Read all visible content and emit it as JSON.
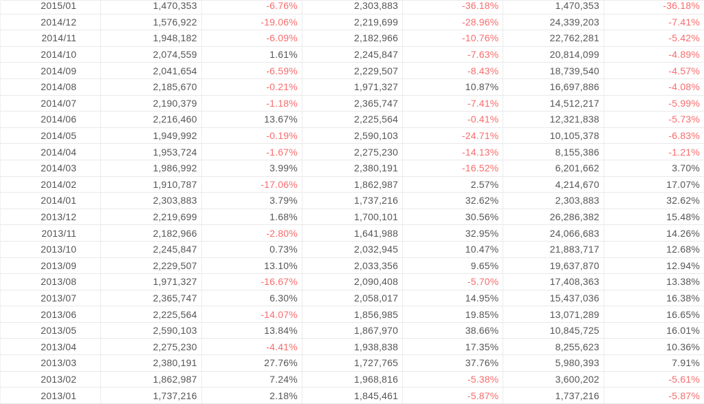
{
  "table": {
    "row_count": 25,
    "column_roles": [
      "month",
      "value",
      "percent",
      "value",
      "percent",
      "value",
      "percent"
    ],
    "rows": [
      [
        "2015/01",
        "1,470,353",
        "-6.76%",
        "2,303,883",
        "-36.18%",
        "1,470,353",
        "-36.18%"
      ],
      [
        "2014/12",
        "1,576,922",
        "-19.06%",
        "2,219,699",
        "-28.96%",
        "24,339,203",
        "-7.41%"
      ],
      [
        "2014/11",
        "1,948,182",
        "-6.09%",
        "2,182,966",
        "-10.76%",
        "22,762,281",
        "-5.42%"
      ],
      [
        "2014/10",
        "2,074,559",
        "1.61%",
        "2,245,847",
        "-7.63%",
        "20,814,099",
        "-4.89%"
      ],
      [
        "2014/09",
        "2,041,654",
        "-6.59%",
        "2,229,507",
        "-8.43%",
        "18,739,540",
        "-4.57%"
      ],
      [
        "2014/08",
        "2,185,670",
        "-0.21%",
        "1,971,327",
        "10.87%",
        "16,697,886",
        "-4.08%"
      ],
      [
        "2014/07",
        "2,190,379",
        "-1.18%",
        "2,365,747",
        "-7.41%",
        "14,512,217",
        "-5.99%"
      ],
      [
        "2014/06",
        "2,216,460",
        "13.67%",
        "2,225,564",
        "-0.41%",
        "12,321,838",
        "-5.73%"
      ],
      [
        "2014/05",
        "1,949,992",
        "-0.19%",
        "2,590,103",
        "-24.71%",
        "10,105,378",
        "-6.83%"
      ],
      [
        "2014/04",
        "1,953,724",
        "-1.67%",
        "2,275,230",
        "-14.13%",
        "8,155,386",
        "-1.21%"
      ],
      [
        "2014/03",
        "1,986,992",
        "3.99%",
        "2,380,191",
        "-16.52%",
        "6,201,662",
        "3.70%"
      ],
      [
        "2014/02",
        "1,910,787",
        "-17.06%",
        "1,862,987",
        "2.57%",
        "4,214,670",
        "17.07%"
      ],
      [
        "2014/01",
        "2,303,883",
        "3.79%",
        "1,737,216",
        "32.62%",
        "2,303,883",
        "32.62%"
      ],
      [
        "2013/12",
        "2,219,699",
        "1.68%",
        "1,700,101",
        "30.56%",
        "26,286,382",
        "15.48%"
      ],
      [
        "2013/11",
        "2,182,966",
        "-2.80%",
        "1,641,988",
        "32.95%",
        "24,066,683",
        "14.26%"
      ],
      [
        "2013/10",
        "2,245,847",
        "0.73%",
        "2,032,945",
        "10.47%",
        "21,883,717",
        "12.68%"
      ],
      [
        "2013/09",
        "2,229,507",
        "13.10%",
        "2,033,356",
        "9.65%",
        "19,637,870",
        "12.94%"
      ],
      [
        "2013/08",
        "1,971,327",
        "-16.67%",
        "2,090,408",
        "-5.70%",
        "17,408,363",
        "13.38%"
      ],
      [
        "2013/07",
        "2,365,747",
        "6.30%",
        "2,058,017",
        "14.95%",
        "15,437,036",
        "16.38%"
      ],
      [
        "2013/06",
        "2,225,564",
        "-14.07%",
        "1,856,985",
        "19.85%",
        "13,071,289",
        "16.65%"
      ],
      [
        "2013/05",
        "2,590,103",
        "13.84%",
        "1,867,970",
        "38.66%",
        "10,845,725",
        "16.01%"
      ],
      [
        "2013/04",
        "2,275,230",
        "-4.41%",
        "1,938,838",
        "17.35%",
        "8,255,623",
        "10.36%"
      ],
      [
        "2013/03",
        "2,380,191",
        "27.76%",
        "1,727,765",
        "37.76%",
        "5,980,393",
        "7.91%"
      ],
      [
        "2013/02",
        "1,862,987",
        "7.24%",
        "1,968,816",
        "-5.38%",
        "3,600,202",
        "-5.61%"
      ],
      [
        "2013/01",
        "1,737,216",
        "2.18%",
        "1,845,461",
        "-5.87%",
        "1,737,216",
        "-5.87%"
      ]
    ]
  },
  "colors": {
    "text": "#555555",
    "negative": "#f96b6b",
    "row_border": "#e9e9e9",
    "column_border": "#ececec",
    "background": "#ffffff"
  }
}
